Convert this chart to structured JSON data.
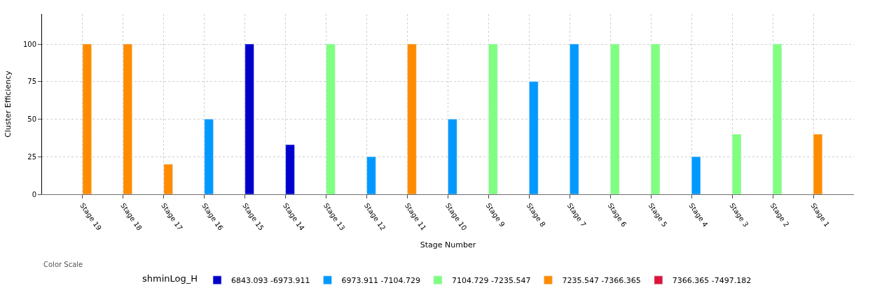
{
  "chart_data": {
    "type": "bar",
    "xlabel": "Stage Number",
    "ylabel": "Cluster Efficiency",
    "legend_title": "shminLog_H",
    "annotations": [
      "Color Scale"
    ],
    "categories": [
      "Stage 19",
      "Stage 18",
      "Stage 17",
      "Stage 16",
      "Stage 15",
      "Stage 14",
      "Stage 13",
      "Stage 12",
      "Stage 11",
      "Stage 10",
      "Stage 9",
      "Stage 8",
      "Stage 7",
      "Stage 6",
      "Stage 5",
      "Stage 4",
      "Stage 3",
      "Stage 2",
      "Stage 1"
    ],
    "series": [
      {
        "name": "6843.093 -6973.911",
        "color": "#0000cd",
        "values": [
          null,
          null,
          null,
          null,
          100,
          33,
          null,
          null,
          null,
          null,
          null,
          null,
          null,
          null,
          null,
          null,
          null,
          null,
          null
        ]
      },
      {
        "name": "6973.911 -7104.729",
        "color": "#0099ff",
        "values": [
          null,
          null,
          null,
          50,
          null,
          null,
          null,
          25,
          null,
          50,
          null,
          75,
          100,
          null,
          null,
          25,
          null,
          null,
          null
        ]
      },
      {
        "name": "7104.729 -7235.547",
        "color": "#80ff80",
        "values": [
          null,
          null,
          null,
          null,
          null,
          null,
          100,
          null,
          null,
          null,
          100,
          null,
          null,
          100,
          100,
          null,
          40,
          100,
          null
        ]
      },
      {
        "name": "7235.547 -7366.365",
        "color": "#ff8c00",
        "values": [
          100,
          100,
          20,
          null,
          null,
          null,
          null,
          null,
          100,
          null,
          null,
          null,
          null,
          null,
          null,
          null,
          null,
          null,
          40
        ]
      },
      {
        "name": "7366.365 -7497.182",
        "color": "#dc143c",
        "values": [
          null,
          null,
          null,
          null,
          null,
          null,
          null,
          null,
          null,
          null,
          null,
          null,
          null,
          null,
          null,
          null,
          null,
          null,
          null
        ]
      }
    ],
    "ylim": [
      0,
      120
    ],
    "yticks": [
      0,
      25,
      50,
      75,
      100
    ],
    "grid": true,
    "legend": "bottom"
  }
}
